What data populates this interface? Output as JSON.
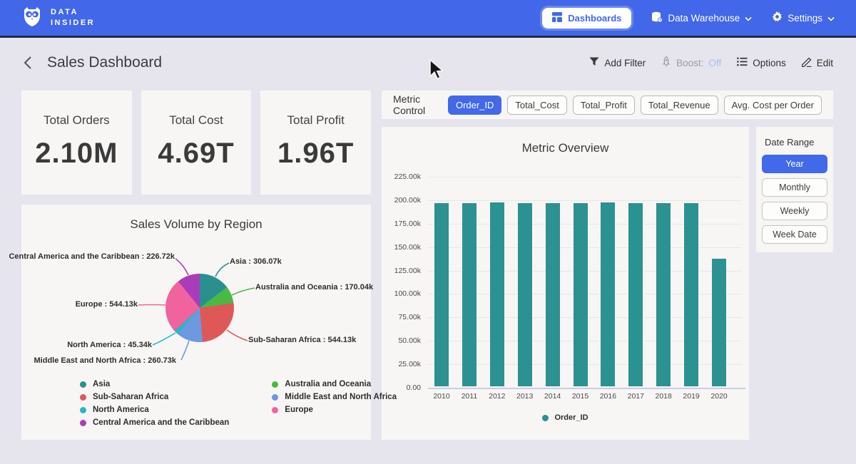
{
  "nav": {
    "brand_line1": "DATA",
    "brand_line2": "INSIDER",
    "dashboards_label": "Dashboards",
    "data_warehouse_label": "Data Warehouse",
    "settings_label": "Settings"
  },
  "header": {
    "title": "Sales Dashboard",
    "add_filter_label": "Add Filter",
    "boost_label": "Boost:",
    "boost_value": "Off",
    "options_label": "Options",
    "edit_label": "Edit"
  },
  "kpis": [
    {
      "label": "Total Orders",
      "value": "2.10M"
    },
    {
      "label": "Total Cost",
      "value": "4.69T"
    },
    {
      "label": "Total Profit",
      "value": "1.96T"
    }
  ],
  "metric_control": {
    "label": "Metric Control",
    "buttons": [
      {
        "label": "Order_ID",
        "selected": true
      },
      {
        "label": "Total_Cost",
        "selected": false
      },
      {
        "label": "Total_Profit",
        "selected": false
      },
      {
        "label": "Total_Revenue",
        "selected": false
      },
      {
        "label": "Avg. Cost per Order",
        "selected": false
      }
    ]
  },
  "date_range": {
    "label": "Date Range",
    "buttons": [
      {
        "label": "Year",
        "selected": true
      },
      {
        "label": "Monthly",
        "selected": false
      },
      {
        "label": "Weekly",
        "selected": false
      },
      {
        "label": "Week Date",
        "selected": false
      }
    ]
  },
  "chart_data": [
    {
      "type": "bar",
      "title": "Metric Overview",
      "categories": [
        "2010",
        "2011",
        "2012",
        "2013",
        "2014",
        "2015",
        "2016",
        "2017",
        "2018",
        "2019",
        "2020"
      ],
      "series": [
        {
          "name": "Order_ID",
          "color": "#2b9191",
          "values_k": [
            195.5,
            195.4,
            196.5,
            195.3,
            195.4,
            195.4,
            196.4,
            195.6,
            195.4,
            195.7,
            136.3
          ]
        }
      ],
      "y_ticks": [
        "225.00k",
        "200.00k",
        "175.00k",
        "150.00k",
        "125.00k",
        "100.00k",
        "75.00k",
        "50.00k",
        "25.00k",
        "0.00"
      ],
      "ylim_k": [
        0,
        225
      ],
      "grid": true,
      "legend_position": "bottom"
    },
    {
      "type": "pie",
      "title": "Sales Volume by Region",
      "slices": [
        {
          "label": "Asia",
          "value_k": 306.07,
          "display": "Asia : 306.07k",
          "color": "#2a8f8f"
        },
        {
          "label": "Australia and Oceania",
          "value_k": 170.04,
          "display": "Australia and Oceania : 170.04k",
          "color": "#49b944"
        },
        {
          "label": "Sub-Saharan Africa",
          "value_k": 544.13,
          "display": "Sub-Saharan Africa : 544.13k",
          "color": "#df5858"
        },
        {
          "label": "Middle East and North Africa",
          "value_k": 260.73,
          "display": "Middle East and North Africa : 260.73k",
          "color": "#6d99e0"
        },
        {
          "label": "North America",
          "value_k": 45.34,
          "display": "North America : 45.34k",
          "color": "#2ab5c8"
        },
        {
          "label": "Europe",
          "value_k": 544.13,
          "display": "Europe : 544.13k",
          "color": "#f0639c"
        },
        {
          "label": "Central America and the Caribbean",
          "value_k": 226.72,
          "display": "Central America and the Caribbean : 226.72k",
          "color": "#aa3cba"
        }
      ],
      "legend_columns": [
        [
          "Asia",
          "Sub-Saharan Africa",
          "North America",
          "Central America and the Caribbean"
        ],
        [
          "Australia and Oceania",
          "Middle East and North Africa",
          "Europe"
        ]
      ],
      "legend_position": "bottom"
    }
  ],
  "colors": {
    "navbar": "#4267e9",
    "accent_blue": "#4169e8",
    "page_bg": "#e6e5ed",
    "card_bg": "#f7f6f4",
    "bar_teal": "#2b9191",
    "boost_off_text": "#a9bdf0"
  }
}
